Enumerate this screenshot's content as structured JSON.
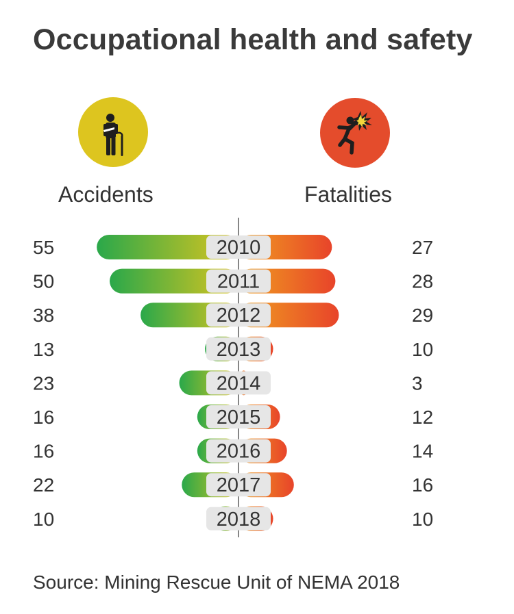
{
  "title": "Occupational health and safety",
  "source": "Source: Mining Rescue Unit of NEMA 2018",
  "icons": {
    "left": "injured-worker-icon",
    "right": "fatality-electric-hazard-icon"
  },
  "colors": {
    "accidents_circle": "#ddc51f",
    "fatalities_circle": "#e44c2c",
    "green": "#2aa84a",
    "yellow": "#ddc51f",
    "orange": "#f0a020",
    "red": "#e8442a",
    "year_pill": "#e6e6e6",
    "text": "#333333"
  },
  "chart_data": {
    "type": "bar",
    "subtype": "butterfly",
    "title": "Occupational health and safety",
    "categories": [
      "2010",
      "2011",
      "2012",
      "2013",
      "2014",
      "2015",
      "2016",
      "2017",
      "2018"
    ],
    "series": [
      {
        "name": "Accidents",
        "values": [
          55,
          50,
          38,
          13,
          23,
          16,
          16,
          22,
          10
        ]
      },
      {
        "name": "Fatalities",
        "values": [
          27,
          28,
          29,
          10,
          3,
          12,
          14,
          16,
          10
        ]
      }
    ],
    "grid": false,
    "legend": "none"
  }
}
